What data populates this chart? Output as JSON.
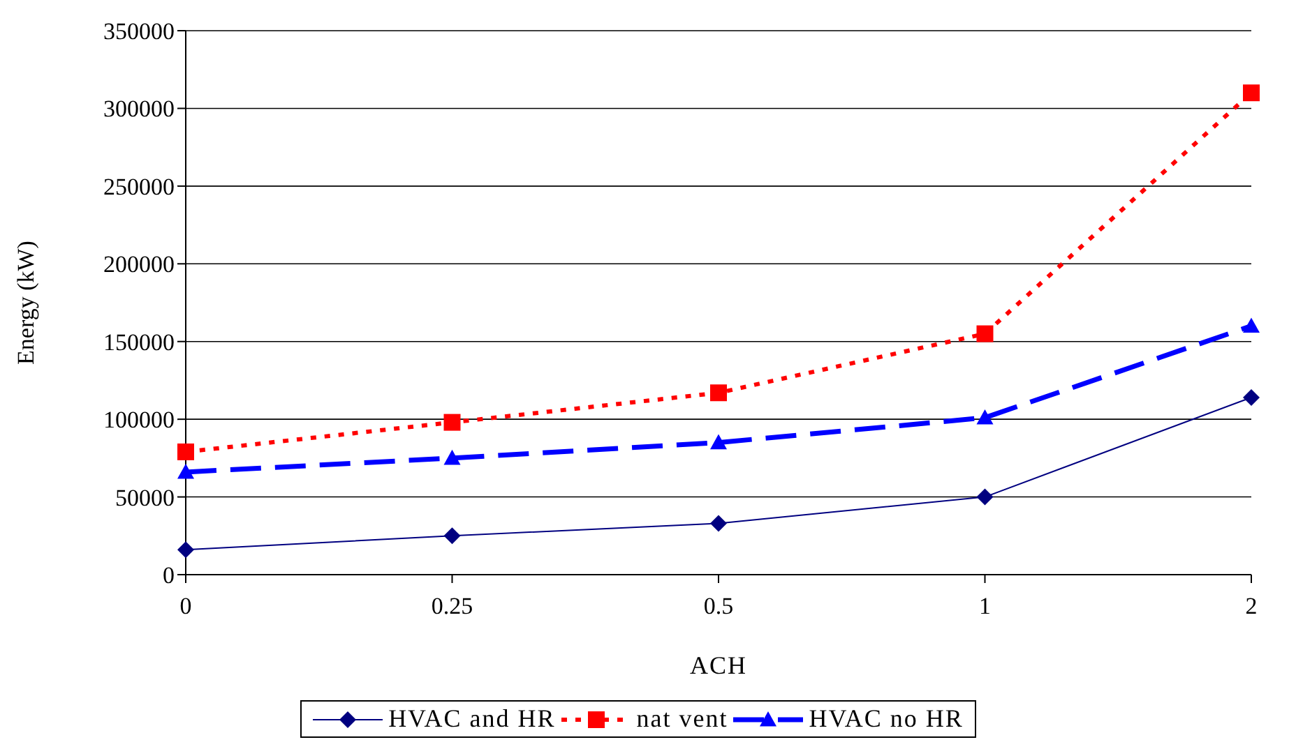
{
  "chart_data": {
    "type": "line",
    "xlabel": "ACH",
    "ylabel": "Energy (kW)",
    "categories": [
      "0",
      "0.25",
      "0.5",
      "1",
      "2"
    ],
    "series": [
      {
        "name": "HVAC and HR",
        "color": "#000080",
        "values": [
          16000,
          25000,
          33000,
          50000,
          114000
        ],
        "marker": "diamond",
        "line_style": "solid"
      },
      {
        "name": "nat vent",
        "color": "#ff0000",
        "values": [
          79000,
          98000,
          117000,
          155000,
          310000
        ],
        "marker": "square",
        "line_style": "dotted"
      },
      {
        "name": "HVAC no HR",
        "color": "#0000ff",
        "values": [
          66000,
          75000,
          85000,
          101000,
          160000
        ],
        "marker": "triangle",
        "line_style": "dashed"
      }
    ],
    "ylim": [
      0,
      350000
    ],
    "yticks": [
      0,
      50000,
      100000,
      150000,
      200000,
      250000,
      300000,
      350000
    ],
    "grid": "y",
    "legend": "bottom"
  }
}
